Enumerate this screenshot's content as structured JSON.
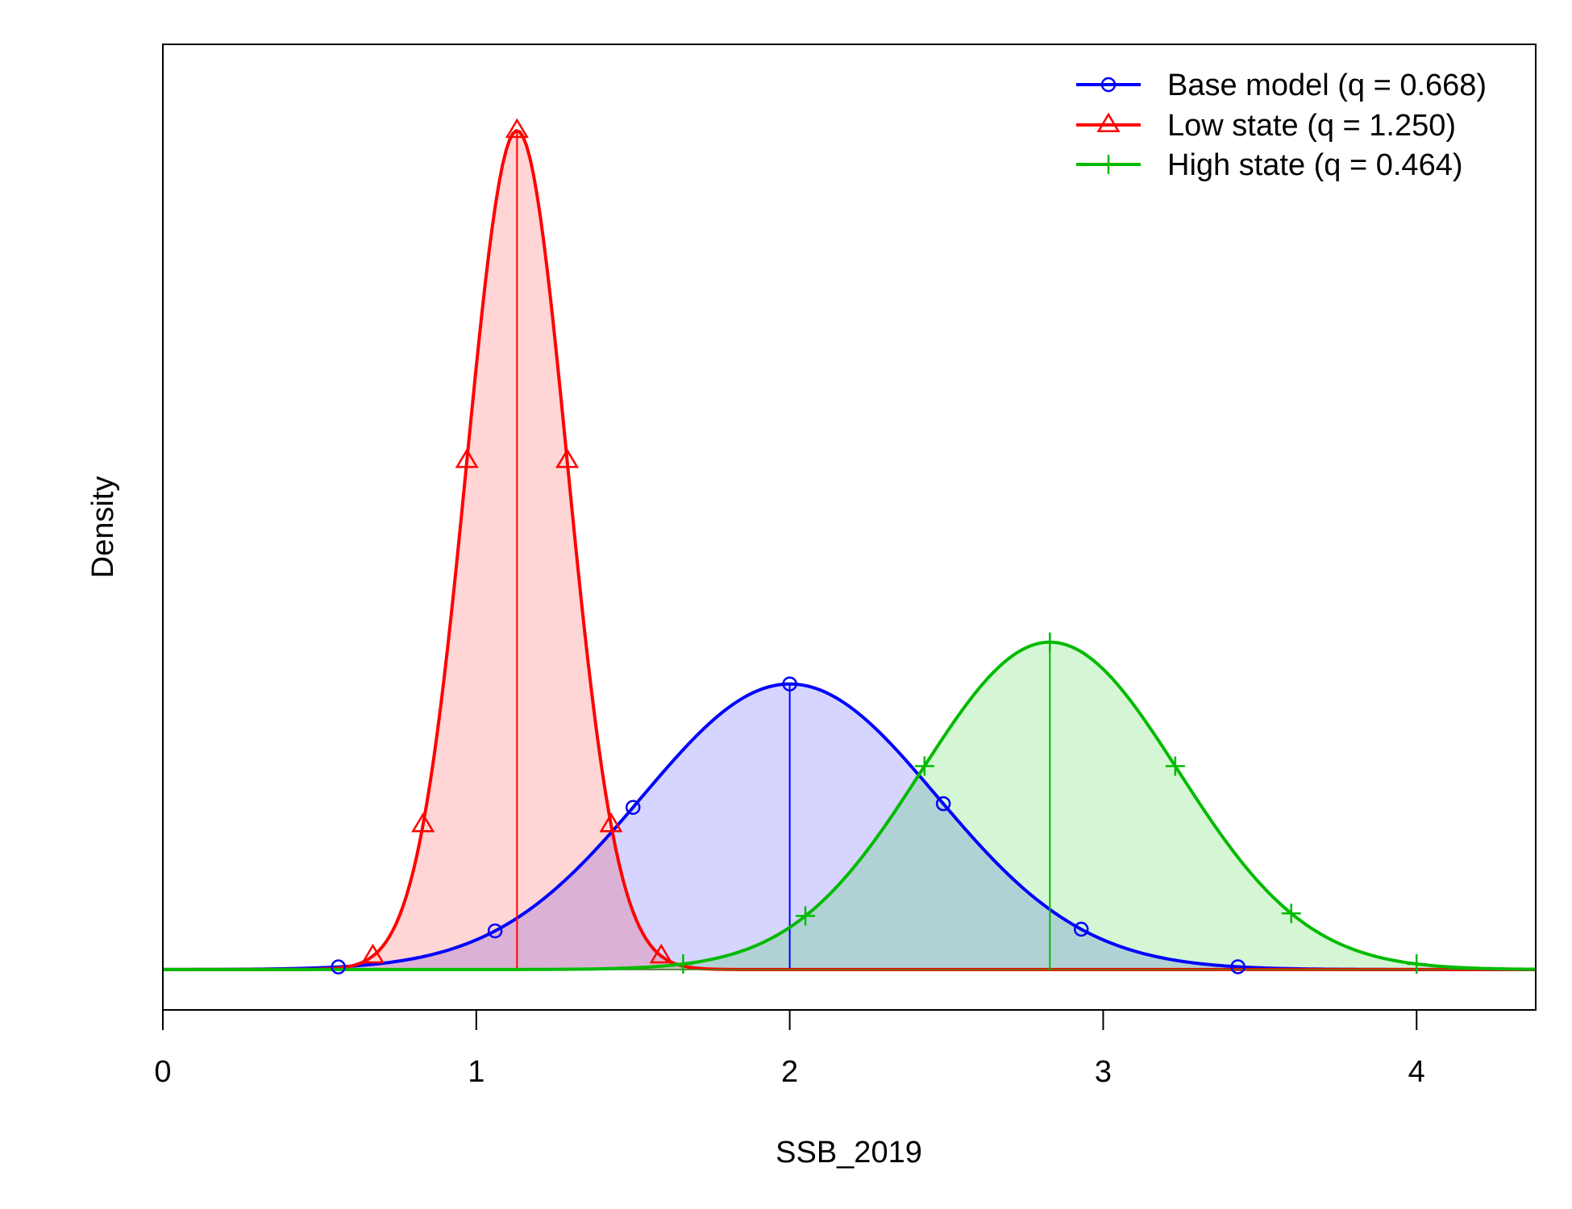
{
  "chart_data": {
    "type": "area",
    "xlabel": "SSB_2019",
    "ylabel": "Density",
    "xlim": [
      0,
      4.38
    ],
    "ylim": [
      -0.12,
      2.75
    ],
    "x_ticks": [
      "0",
      "1",
      "2",
      "3",
      "4"
    ],
    "x_tick_values": [
      0,
      1,
      2,
      3,
      4
    ],
    "grid": false,
    "legend_position": "top-right",
    "series": [
      {
        "name": "Base model (q = 0.668)",
        "color": "#0000ff",
        "fill": "#0000ff",
        "marker": "circle",
        "mean": 2.0,
        "sd": 0.47,
        "median_x": 2.0,
        "shade_interval": [
          0.56,
          3.44
        ],
        "marker_x": [
          0.56,
          1.06,
          1.5,
          2.0,
          2.49,
          2.93,
          3.43
        ]
      },
      {
        "name": "Low state (q = 1.250)",
        "color": "#ff0000",
        "fill": "#ff0000",
        "marker": "triangle",
        "mean": 1.13,
        "sd": 0.16,
        "median_x": 1.13,
        "shade_interval": [
          0.67,
          1.6
        ],
        "marker_x": [
          0.67,
          0.83,
          0.97,
          1.13,
          1.29,
          1.43,
          1.59
        ]
      },
      {
        "name": "High state (q = 0.464)",
        "color": "#00bb00",
        "fill": "#00cc00",
        "marker": "plus",
        "mean": 2.83,
        "sd": 0.41,
        "median_x": 2.83,
        "shade_interval": [
          1.65,
          4.02
        ],
        "marker_x": [
          1.66,
          2.05,
          2.43,
          2.83,
          3.23,
          3.6,
          4.0
        ]
      }
    ]
  }
}
